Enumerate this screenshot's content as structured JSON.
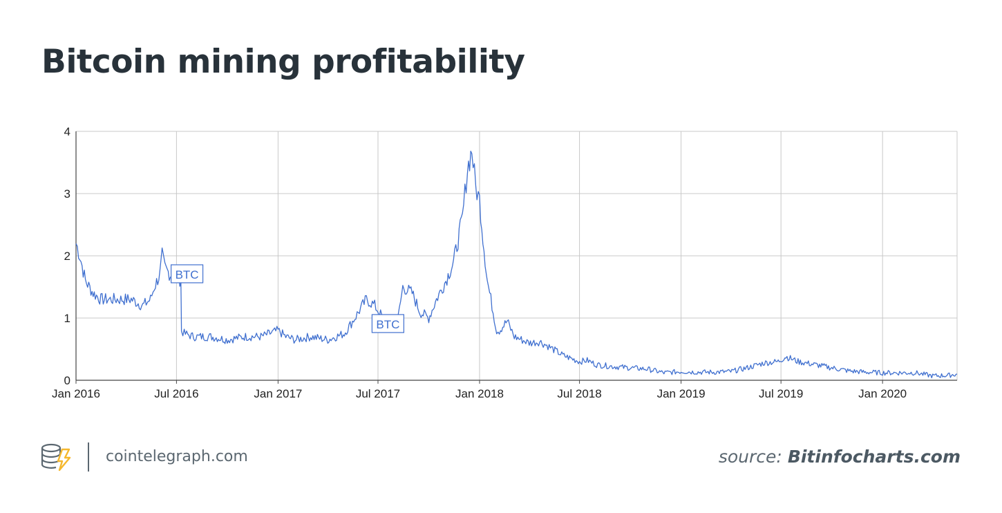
{
  "title": "Bitcoin mining profitability",
  "footer": {
    "site": "cointelegraph.com",
    "source_label": "source:",
    "source_name": "Bitinfocharts.com"
  },
  "colors": {
    "line": "#3f6fcf",
    "grid": "#c8c8c8",
    "title": "#28323a",
    "footer": "#5b6770",
    "logo_accent": "#f5b82e"
  },
  "chart_data": {
    "type": "line",
    "title": "Bitcoin mining profitability",
    "xlabel": "",
    "ylabel": "",
    "ylim": [
      0,
      4
    ],
    "xlim": [
      "2016-01-01",
      "2020-05-15"
    ],
    "grid": true,
    "x_ticks": [
      {
        "date": "2016-01-01",
        "label": "Jan 2016"
      },
      {
        "date": "2016-07-01",
        "label": "Jul 2016"
      },
      {
        "date": "2017-01-01",
        "label": "Jan 2017"
      },
      {
        "date": "2017-07-01",
        "label": "Jul 2017"
      },
      {
        "date": "2018-01-01",
        "label": "Jan 2018"
      },
      {
        "date": "2018-07-01",
        "label": "Jul 2018"
      },
      {
        "date": "2019-01-01",
        "label": "Jan 2019"
      },
      {
        "date": "2019-07-01",
        "label": "Jul 2019"
      },
      {
        "date": "2020-01-01",
        "label": "Jan 2020"
      }
    ],
    "y_ticks": [
      {
        "value": 0,
        "label": "0"
      },
      {
        "value": 1,
        "label": "1"
      },
      {
        "value": 2,
        "label": "2"
      },
      {
        "value": 3,
        "label": "3"
      },
      {
        "value": 4,
        "label": "4"
      }
    ],
    "annotations": [
      {
        "date": "2016-07-10",
        "value": 1.7,
        "label": "BTC"
      },
      {
        "date": "2017-07-09",
        "value": 0.9,
        "label": "BTC"
      }
    ],
    "series": [
      {
        "x": [
          "2016-01-01",
          "2016-01-08",
          "2016-01-18",
          "2016-02-01",
          "2016-02-15",
          "2016-03-01",
          "2016-03-20",
          "2016-04-10",
          "2016-05-01",
          "2016-05-15",
          "2016-05-22",
          "2016-06-01",
          "2016-06-05",
          "2016-06-10",
          "2016-06-20",
          "2016-07-01",
          "2016-07-09",
          "2016-07-10",
          "2016-07-15",
          "2016-08-01",
          "2016-09-01",
          "2016-10-01",
          "2016-11-01",
          "2016-12-01",
          "2017-01-01",
          "2017-01-15",
          "2017-02-01",
          "2017-03-01",
          "2017-04-01",
          "2017-05-01",
          "2017-05-20",
          "2017-06-10",
          "2017-06-25",
          "2017-07-10",
          "2017-07-20",
          "2017-08-05",
          "2017-08-15",
          "2017-09-01",
          "2017-09-15",
          "2017-10-01",
          "2017-10-15",
          "2017-11-01",
          "2017-11-15",
          "2017-12-01",
          "2017-12-10",
          "2017-12-18",
          "2017-12-25",
          "2018-01-01",
          "2018-01-07",
          "2018-01-15",
          "2018-02-01",
          "2018-02-06",
          "2018-02-20",
          "2018-03-05",
          "2018-04-01",
          "2018-04-20",
          "2018-05-05",
          "2018-06-01",
          "2018-07-01",
          "2018-07-15",
          "2018-08-01",
          "2018-09-01",
          "2018-10-01",
          "2018-11-01",
          "2018-12-01",
          "2019-01-01",
          "2019-02-01",
          "2019-03-01",
          "2019-04-01",
          "2019-05-01",
          "2019-06-01",
          "2019-06-26",
          "2019-07-10",
          "2019-08-01",
          "2019-09-01",
          "2019-10-01",
          "2019-11-01",
          "2019-12-01",
          "2020-01-01",
          "2020-02-01",
          "2020-03-01",
          "2020-03-12",
          "2020-04-01",
          "2020-05-01",
          "2020-05-15"
        ],
        "y": [
          2.2,
          2.0,
          1.6,
          1.4,
          1.3,
          1.3,
          1.3,
          1.3,
          1.2,
          1.3,
          1.5,
          1.7,
          2.0,
          1.8,
          1.7,
          1.7,
          1.6,
          0.8,
          0.75,
          0.7,
          0.7,
          0.65,
          0.7,
          0.7,
          0.8,
          0.7,
          0.65,
          0.7,
          0.65,
          0.75,
          1.0,
          1.3,
          1.2,
          1.0,
          0.85,
          0.9,
          1.5,
          1.4,
          1.1,
          1.0,
          1.3,
          1.6,
          1.9,
          2.6,
          3.4,
          3.7,
          3.1,
          2.9,
          2.3,
          1.6,
          0.8,
          0.8,
          0.95,
          0.7,
          0.6,
          0.62,
          0.55,
          0.4,
          0.3,
          0.32,
          0.25,
          0.22,
          0.2,
          0.18,
          0.12,
          0.14,
          0.13,
          0.13,
          0.14,
          0.2,
          0.28,
          0.3,
          0.38,
          0.3,
          0.25,
          0.2,
          0.15,
          0.13,
          0.12,
          0.12,
          0.12,
          0.1,
          0.07,
          0.08,
          0.1
        ]
      }
    ]
  }
}
